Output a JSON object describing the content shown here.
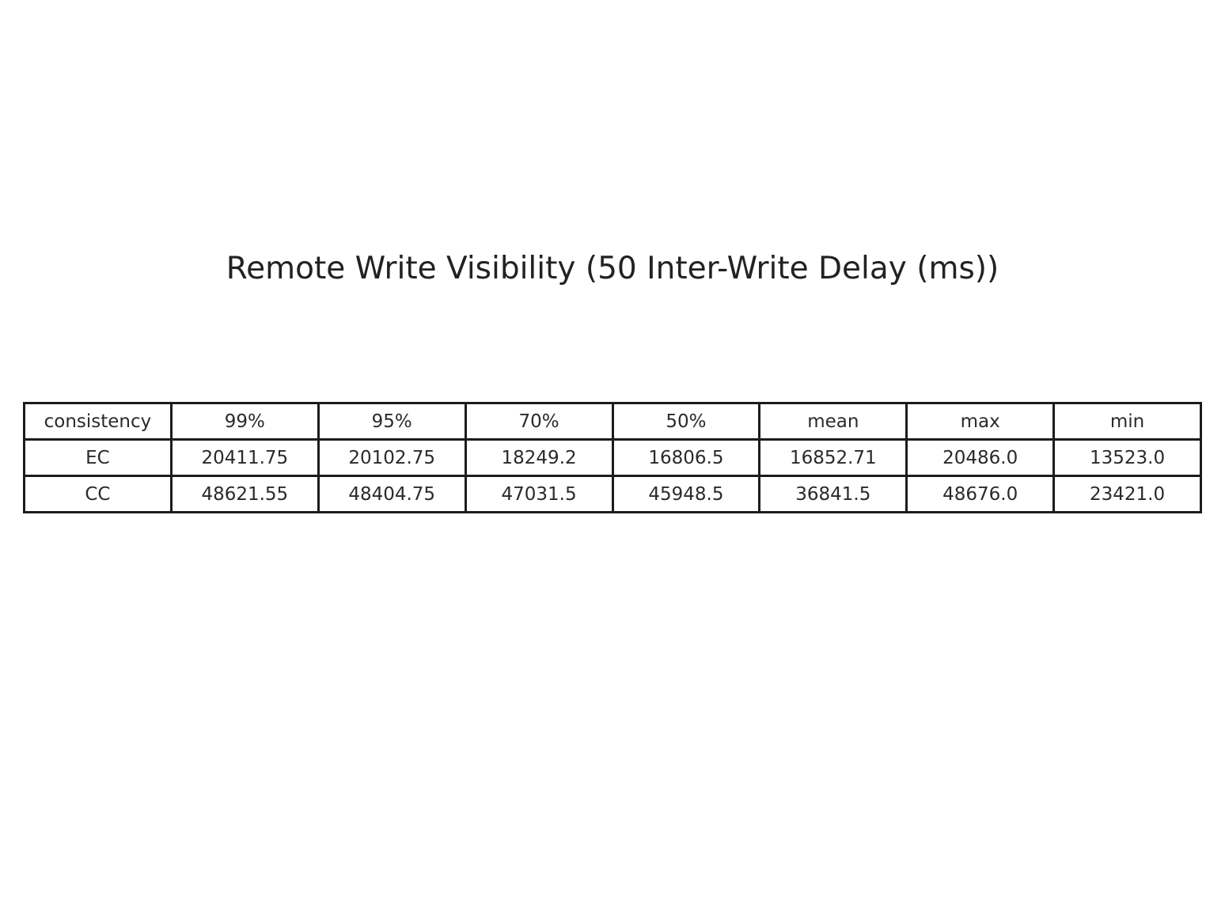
{
  "chart_data": {
    "type": "table",
    "title": "Remote Write Visibility (50 Inter-Write Delay (ms))",
    "columns": [
      "consistency",
      "99%",
      "95%",
      "70%",
      "50%",
      "mean",
      "max",
      "min"
    ],
    "rows": [
      [
        "EC",
        "20411.75",
        "20102.75",
        "18249.2",
        "16806.5",
        "16852.71",
        "20486.0",
        "13523.0"
      ],
      [
        "CC",
        "48621.55",
        "48404.75",
        "47031.5",
        "45948.5",
        "36841.5",
        "48676.0",
        "23421.0"
      ]
    ]
  },
  "colors": {
    "text": "#222222",
    "border": "#1c1c1c",
    "background": "#ffffff"
  }
}
